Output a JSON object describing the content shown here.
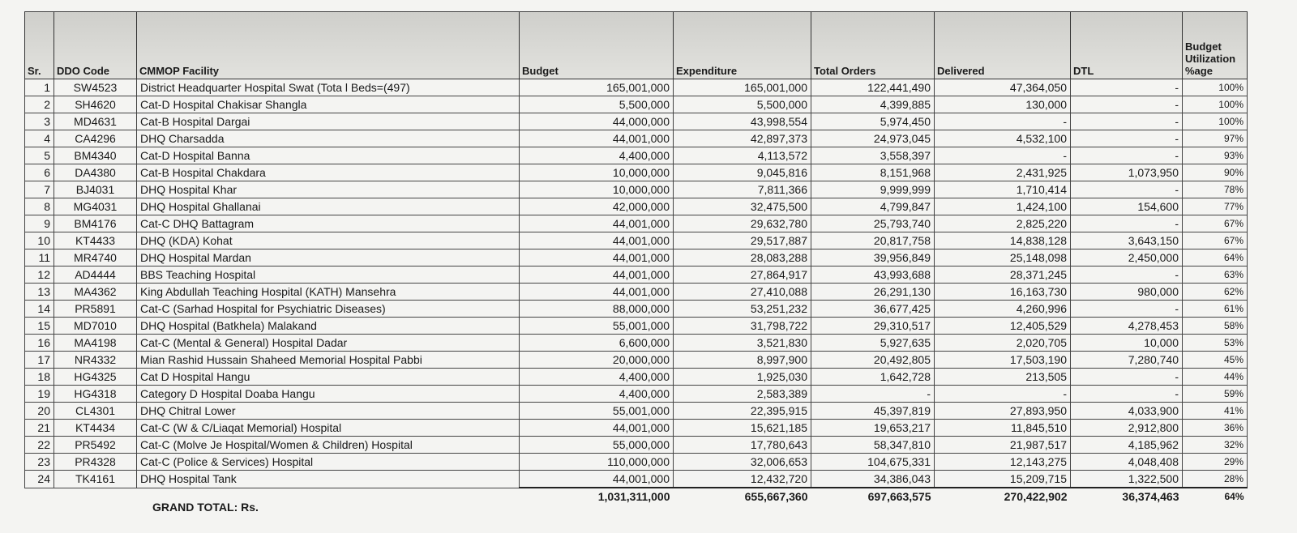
{
  "table": {
    "headers": [
      "Sr.",
      "DDO Code",
      "CMMOP Facility",
      "Budget",
      "Expenditure",
      "Total Orders",
      "Delivered",
      "DTL",
      "Budget Utilization %age"
    ],
    "rows": [
      [
        "1",
        "SW4523",
        "District Headquarter Hospital Swat (Tota l Beds=(497)",
        "165,001,000",
        "165,001,000",
        "122,441,490",
        "47,364,050",
        "-",
        "100%"
      ],
      [
        "2",
        "SH4620",
        "Cat-D Hospital Chakisar Shangla",
        "5,500,000",
        "5,500,000",
        "4,399,885",
        "130,000",
        "-",
        "100%"
      ],
      [
        "3",
        "MD4631",
        "Cat-B Hospital Dargai",
        "44,000,000",
        "43,998,554",
        "5,974,450",
        "-",
        "-",
        "100%"
      ],
      [
        "4",
        "CA4296",
        "DHQ Charsadda",
        "44,001,000",
        "42,897,373",
        "24,973,045",
        "4,532,100",
        "-",
        "97%"
      ],
      [
        "5",
        "BM4340",
        "Cat-D Hospital Banna",
        "4,400,000",
        "4,113,572",
        "3,558,397",
        "-",
        "-",
        "93%"
      ],
      [
        "6",
        "DA4380",
        "Cat-B Hospital Chakdara",
        "10,000,000",
        "9,045,816",
        "8,151,968",
        "2,431,925",
        "1,073,950",
        "90%"
      ],
      [
        "7",
        "BJ4031",
        "DHQ Hospital Khar",
        "10,000,000",
        "7,811,366",
        "9,999,999",
        "1,710,414",
        "-",
        "78%"
      ],
      [
        "8",
        "MG4031",
        "DHQ Hospital Ghallanai",
        "42,000,000",
        "32,475,500",
        "4,799,847",
        "1,424,100",
        "154,600",
        "77%"
      ],
      [
        "9",
        "BM4176",
        "Cat-C DHQ Battagram",
        "44,001,000",
        "29,632,780",
        "25,793,740",
        "2,825,220",
        "-",
        "67%"
      ],
      [
        "10",
        "KT4433",
        "DHQ (KDA) Kohat",
        "44,001,000",
        "29,517,887",
        "20,817,758",
        "14,838,128",
        "3,643,150",
        "67%"
      ],
      [
        "11",
        "MR4740",
        "DHQ Hospital Mardan",
        "44,001,000",
        "28,083,288",
        "39,956,849",
        "25,148,098",
        "2,450,000",
        "64%"
      ],
      [
        "12",
        "AD4444",
        "BBS Teaching Hospital",
        "44,001,000",
        "27,864,917",
        "43,993,688",
        "28,371,245",
        "-",
        "63%"
      ],
      [
        "13",
        "MA4362",
        "King Abdullah Teaching Hospital (KATH) Mansehra",
        "44,001,000",
        "27,410,088",
        "26,291,130",
        "16,163,730",
        "980,000",
        "62%"
      ],
      [
        "14",
        "PR5891",
        "Cat-C (Sarhad Hospital for Psychiatric Diseases)",
        "88,000,000",
        "53,251,232",
        "36,677,425",
        "4,260,996",
        "-",
        "61%"
      ],
      [
        "15",
        "MD7010",
        "DHQ Hospital (Batkhela) Malakand",
        "55,001,000",
        "31,798,722",
        "29,310,517",
        "12,405,529",
        "4,278,453",
        "58%"
      ],
      [
        "16",
        "MA4198",
        "Cat-C (Mental & General) Hospital Dadar",
        "6,600,000",
        "3,521,830",
        "5,927,635",
        "2,020,705",
        "10,000",
        "53%"
      ],
      [
        "17",
        "NR4332",
        "Mian Rashid Hussain Shaheed Memorial Hospital Pabbi",
        "20,000,000",
        "8,997,900",
        "20,492,805",
        "17,503,190",
        "7,280,740",
        "45%"
      ],
      [
        "18",
        "HG4325",
        "Cat D Hospital Hangu",
        "4,400,000",
        "1,925,030",
        "1,642,728",
        "213,505",
        "-",
        "44%"
      ],
      [
        "19",
        "HG4318",
        "Category D Hospital Doaba Hangu",
        "4,400,000",
        "2,583,389",
        "-",
        "-",
        "-",
        "59%"
      ],
      [
        "20",
        "CL4301",
        "DHQ Chitral Lower",
        "55,001,000",
        "22,395,915",
        "45,397,819",
        "27,893,950",
        "4,033,900",
        "41%"
      ],
      [
        "21",
        "KT4434",
        "Cat-C (W & C/Liaqat Memorial) Hospital",
        "44,001,000",
        "15,621,185",
        "19,653,217",
        "11,845,510",
        "2,912,800",
        "36%"
      ],
      [
        "22",
        "PR5492",
        "Cat-C (Molve Je Hospital/Women & Children) Hospital",
        "55,000,000",
        "17,780,643",
        "58,347,810",
        "21,987,517",
        "4,185,962",
        "32%"
      ],
      [
        "23",
        "PR4328",
        "Cat-C (Police & Services) Hospital",
        "110,000,000",
        "32,006,653",
        "104,675,331",
        "12,143,275",
        "4,048,408",
        "29%"
      ],
      [
        "24",
        "TK4161",
        "DHQ Hospital Tank",
        "44,001,000",
        "12,432,720",
        "34,386,043",
        "15,209,715",
        "1,322,500",
        "28%"
      ]
    ],
    "total": {
      "label": "GRAND TOTAL: Rs.",
      "values": [
        "1,031,311,000",
        "655,667,360",
        "697,663,575",
        "270,422,902",
        "36,374,463",
        "64%"
      ]
    }
  }
}
